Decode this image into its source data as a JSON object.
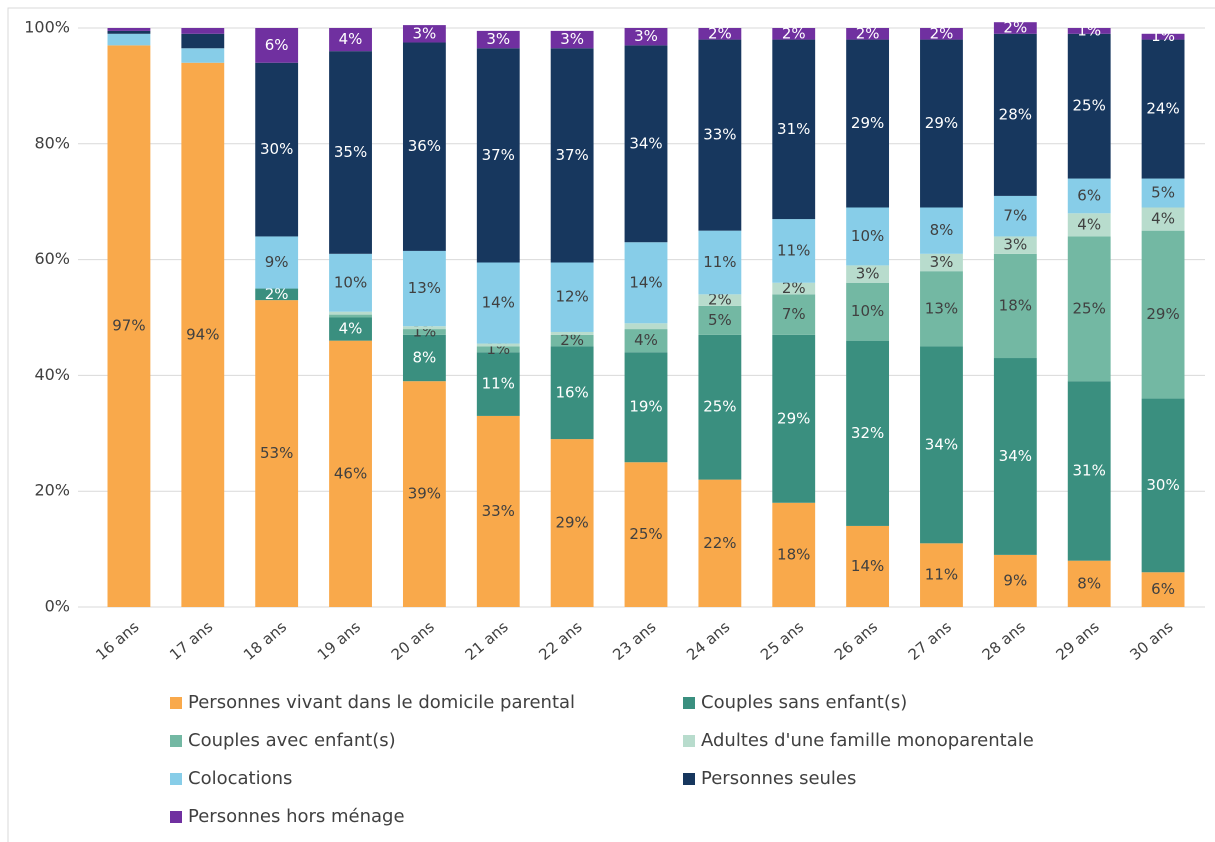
{
  "chart_data": {
    "type": "stacked_bar",
    "categories": [
      "16 ans",
      "17 ans",
      "18 ans",
      "19 ans",
      "20 ans",
      "21 ans",
      "22 ans",
      "23 ans",
      "24 ans",
      "25 ans",
      "26 ans",
      "27 ans",
      "28 ans",
      "29 ans",
      "30 ans"
    ],
    "series": [
      {
        "name": "Personnes vivant dans le domicile parental",
        "color": "#f9a94b",
        "values": [
          97,
          94,
          53,
          46,
          39,
          33,
          29,
          25,
          22,
          18,
          14,
          11,
          9,
          8,
          6
        ],
        "value_labels": [
          "97%",
          "94%",
          "53%",
          "46%",
          "39%",
          "33%",
          "29%",
          "25%",
          "22%",
          "18%",
          "14%",
          "11%",
          "9%",
          "8%",
          "6%"
        ]
      },
      {
        "name": "Couples sans enfant(s)",
        "color": "#3a8f7f",
        "values": [
          0,
          0,
          2,
          4,
          8,
          11,
          16,
          19,
          25,
          29,
          32,
          34,
          34,
          31,
          30
        ],
        "value_labels": [
          null,
          null,
          "2%",
          "4%",
          "8%",
          "11%",
          "16%",
          "19%",
          "25%",
          "29%",
          "32%",
          "34%",
          "34%",
          "31%",
          "30%"
        ]
      },
      {
        "name": "Couples avec enfant(s)",
        "color": "#73b8a3",
        "values": [
          0,
          0,
          0,
          0.5,
          1,
          1,
          2,
          4,
          5,
          7,
          10,
          13,
          18,
          25,
          29
        ],
        "value_labels": [
          null,
          null,
          null,
          null,
          "1%",
          "1%",
          "2%",
          "4%",
          "5%",
          "7%",
          "10%",
          "13%",
          "18%",
          "25%",
          "29%"
        ]
      },
      {
        "name": "Adultes d'une famille monoparentale",
        "color": "#b8dccd",
        "values": [
          0,
          0,
          0,
          0.5,
          0.5,
          0.5,
          0.5,
          1,
          2,
          2,
          3,
          3,
          3,
          4,
          4
        ],
        "value_labels": [
          null,
          null,
          null,
          null,
          null,
          null,
          null,
          null,
          "2%",
          "2%",
          "3%",
          "3%",
          "3%",
          "4%",
          "4%"
        ]
      },
      {
        "name": "Colocations",
        "color": "#87cde8",
        "values": [
          2,
          2.5,
          9,
          10,
          13,
          14,
          12,
          14,
          11,
          11,
          10,
          8,
          7,
          6,
          5
        ],
        "value_labels": [
          null,
          null,
          "9%",
          "10%",
          "13%",
          "14%",
          "12%",
          "14%",
          "11%",
          "11%",
          "10%",
          "8%",
          "7%",
          "6%",
          "5%"
        ]
      },
      {
        "name": "Personnes seules",
        "color": "#17375e",
        "values": [
          0.5,
          2.5,
          30,
          35,
          36,
          37,
          37,
          34,
          33,
          31,
          29,
          29,
          28,
          25,
          24
        ],
        "value_labels": [
          null,
          null,
          "30%",
          "35%",
          "36%",
          "37%",
          "37%",
          "34%",
          "33%",
          "31%",
          "29%",
          "29%",
          "28%",
          "25%",
          "24%"
        ]
      },
      {
        "name": "Personnes hors ménage",
        "color": "#7030a0",
        "values": [
          0.5,
          1,
          6,
          4,
          3,
          3,
          3,
          3,
          2,
          2,
          2,
          2,
          2,
          1,
          1
        ],
        "value_labels": [
          null,
          null,
          "6%",
          "4%",
          "3%",
          "3%",
          "3%",
          "3%",
          "2%",
          "2%",
          "2%",
          "2%",
          "2%",
          "1%",
          "1%"
        ]
      }
    ],
    "ylim": [
      0,
      100
    ],
    "yticks": [
      {
        "value": 0,
        "label": "0%"
      },
      {
        "value": 20,
        "label": "20%"
      },
      {
        "value": 40,
        "label": "40%"
      },
      {
        "value": 60,
        "label": "60%"
      },
      {
        "value": 80,
        "label": "80%"
      },
      {
        "value": 100,
        "label": "100%"
      }
    ],
    "grid": true,
    "legend": "bottom"
  }
}
